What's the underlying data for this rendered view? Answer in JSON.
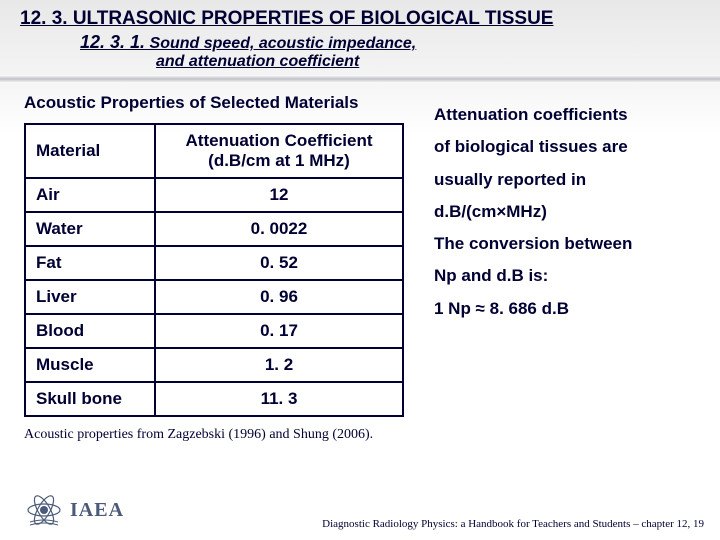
{
  "section": {
    "title": "12. 3. ULTRASONIC PROPERTIES OF BIOLOGICAL TISSUE",
    "title_fontsize": 19,
    "subsection_num": "12. 3. 1.",
    "subsection_title_line1": "Sound speed, acoustic impedance,",
    "subsection_title_line2": "and attenuation coefficient",
    "subsection_num_fontsize": 18,
    "subsection_title_fontsize": 16
  },
  "table": {
    "title": "Acoustic Properties of Selected Materials",
    "title_fontsize": 17,
    "header_col1": "Material",
    "header_col2_line1": "Attenuation Coefficient",
    "header_col2_line2": "(d.B/cm at 1 MHz)",
    "rows": [
      {
        "material": "Air",
        "value": "12"
      },
      {
        "material": "Water",
        "value": "0. 0022"
      },
      {
        "material": "Fat",
        "value": "0. 52"
      },
      {
        "material": "Liver",
        "value": "0. 96"
      },
      {
        "material": "Blood",
        "value": "0. 17"
      },
      {
        "material": "Muscle",
        "value": "1. 2"
      },
      {
        "material": "Skull bone",
        "value": "11. 3"
      }
    ],
    "header_fontsize": 17,
    "cell_fontsize": 17
  },
  "right_text": {
    "lines": [
      "Attenuation coefficients",
      "of biological tissues are",
      "usually reported in",
      "d.B/(cm×MHz)",
      "The conversion between",
      "Np and d.B is:",
      "1 Np ≈ 8. 686 d.B"
    ],
    "fontsize": 17
  },
  "source_note": {
    "text": "Acoustic properties from Zagzebski (1996) and Shung (2006).",
    "fontsize": 14
  },
  "footer": {
    "org": "IAEA",
    "org_fontsize": 20,
    "right_text": "Diagnostic Radiology Physics: a Handbook for Teachers and Students – chapter 12, 19",
    "right_fontsize": 11
  },
  "colors": {
    "text_primary": "#000033",
    "logo": "#4a5a78",
    "border": "#000033"
  }
}
